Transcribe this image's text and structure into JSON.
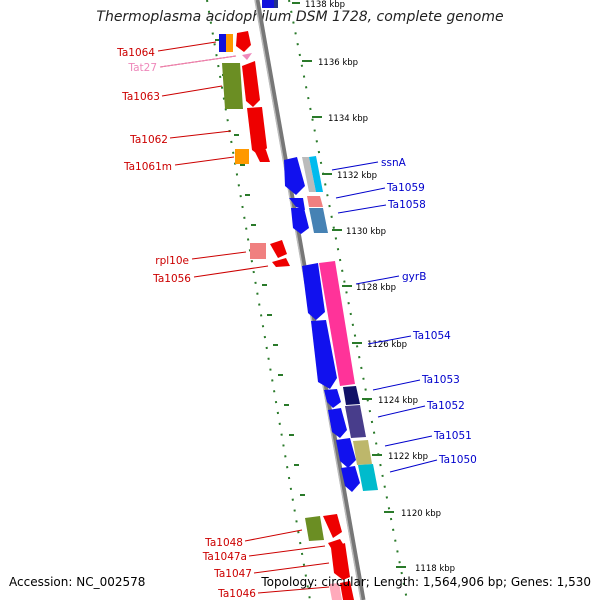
{
  "title": "Thermoplasma acidophilum DSM 1728, complete genome",
  "footer": {
    "accession": "Accession: NC_002578",
    "stats": "Topology: circular; Length: 1,564,906 bp; Genes: 1,530"
  },
  "colors": {
    "left_strand_label": "#cc0000",
    "right_strand_label": "#0000cc",
    "tick": "#2a7a2a",
    "backbone": "#888888"
  },
  "kbp_ticks": [
    {
      "label": "1138 kbp"
    },
    {
      "label": "1136 kbp"
    },
    {
      "label": "1134 kbp"
    },
    {
      "label": "1132 kbp"
    },
    {
      "label": "1130 kbp"
    },
    {
      "label": "1128 kbp"
    },
    {
      "label": "1126 kbp"
    },
    {
      "label": "1124 kbp"
    },
    {
      "label": "1122 kbp"
    },
    {
      "label": "1120 kbp"
    },
    {
      "label": "1118 kbp"
    }
  ],
  "left_genes": [
    {
      "label": "Ta1064",
      "color": "#dd0000"
    },
    {
      "label": "Tat27",
      "color": "#ee88bb"
    },
    {
      "label": "Ta1063",
      "color": "#dd0000"
    },
    {
      "label": "Ta1062",
      "color": "#dd0000"
    },
    {
      "label": "Ta1061m",
      "color": "#dd0000"
    },
    {
      "label": "rpl10e",
      "color": "#dd0000"
    },
    {
      "label": "Ta1056",
      "color": "#dd0000"
    },
    {
      "label": "Ta1048",
      "color": "#dd0000"
    },
    {
      "label": "Ta1047a",
      "color": "#dd0000"
    },
    {
      "label": "Ta1047",
      "color": "#dd0000"
    },
    {
      "label": "Ta1046",
      "color": "#dd0000"
    }
  ],
  "right_genes": [
    {
      "label": "ssnA"
    },
    {
      "label": "Ta1059"
    },
    {
      "label": "Ta1058"
    },
    {
      "label": "gyrB"
    },
    {
      "label": "Ta1054"
    },
    {
      "label": "Ta1053"
    },
    {
      "label": "Ta1052"
    },
    {
      "label": "Ta1051"
    },
    {
      "label": "Ta1050"
    }
  ]
}
